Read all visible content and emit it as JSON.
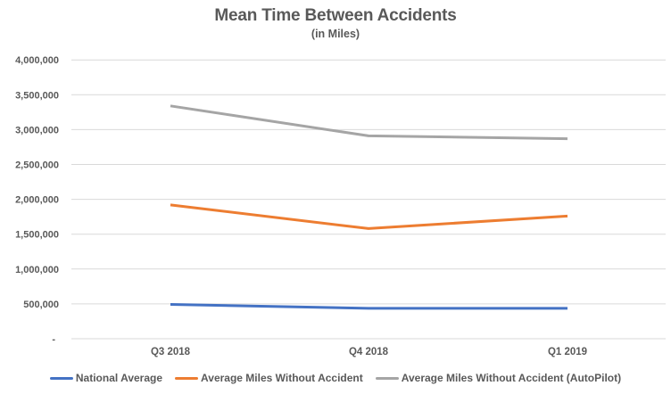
{
  "chart_data": {
    "type": "line",
    "title": "Mean Time Between Accidents",
    "subtitle": "(in Miles)",
    "categories": [
      "Q3 2018",
      "Q4 2018",
      "Q1 2019"
    ],
    "series": [
      {
        "name": "National Average",
        "color": "#4472C4",
        "values": [
          492000,
          436000,
          436000
        ]
      },
      {
        "name": "Average Miles Without Accident",
        "color": "#ED7D31",
        "values": [
          1920000,
          1580000,
          1760000
        ]
      },
      {
        "name": "Average Miles Without Accident (AutoPilot)",
        "color": "#A5A5A5",
        "values": [
          3340000,
          2910000,
          2870000
        ]
      }
    ],
    "ylim": [
      0,
      4000000
    ],
    "ytick_step": 500000,
    "ytick_values": [
      0,
      500000,
      1000000,
      1500000,
      2000000,
      2500000,
      3000000,
      3500000,
      4000000
    ],
    "ytick_labels": [
      "-",
      "500,000",
      "1,000,000",
      "1,500,000",
      "2,000,000",
      "2,500,000",
      "3,000,000",
      "3,500,000",
      "4,000,000"
    ],
    "xlabel": "",
    "ylabel": "",
    "grid": true,
    "legend_position": "bottom"
  },
  "colors": {
    "grid": "#D9D9D9",
    "text": "#595959"
  }
}
